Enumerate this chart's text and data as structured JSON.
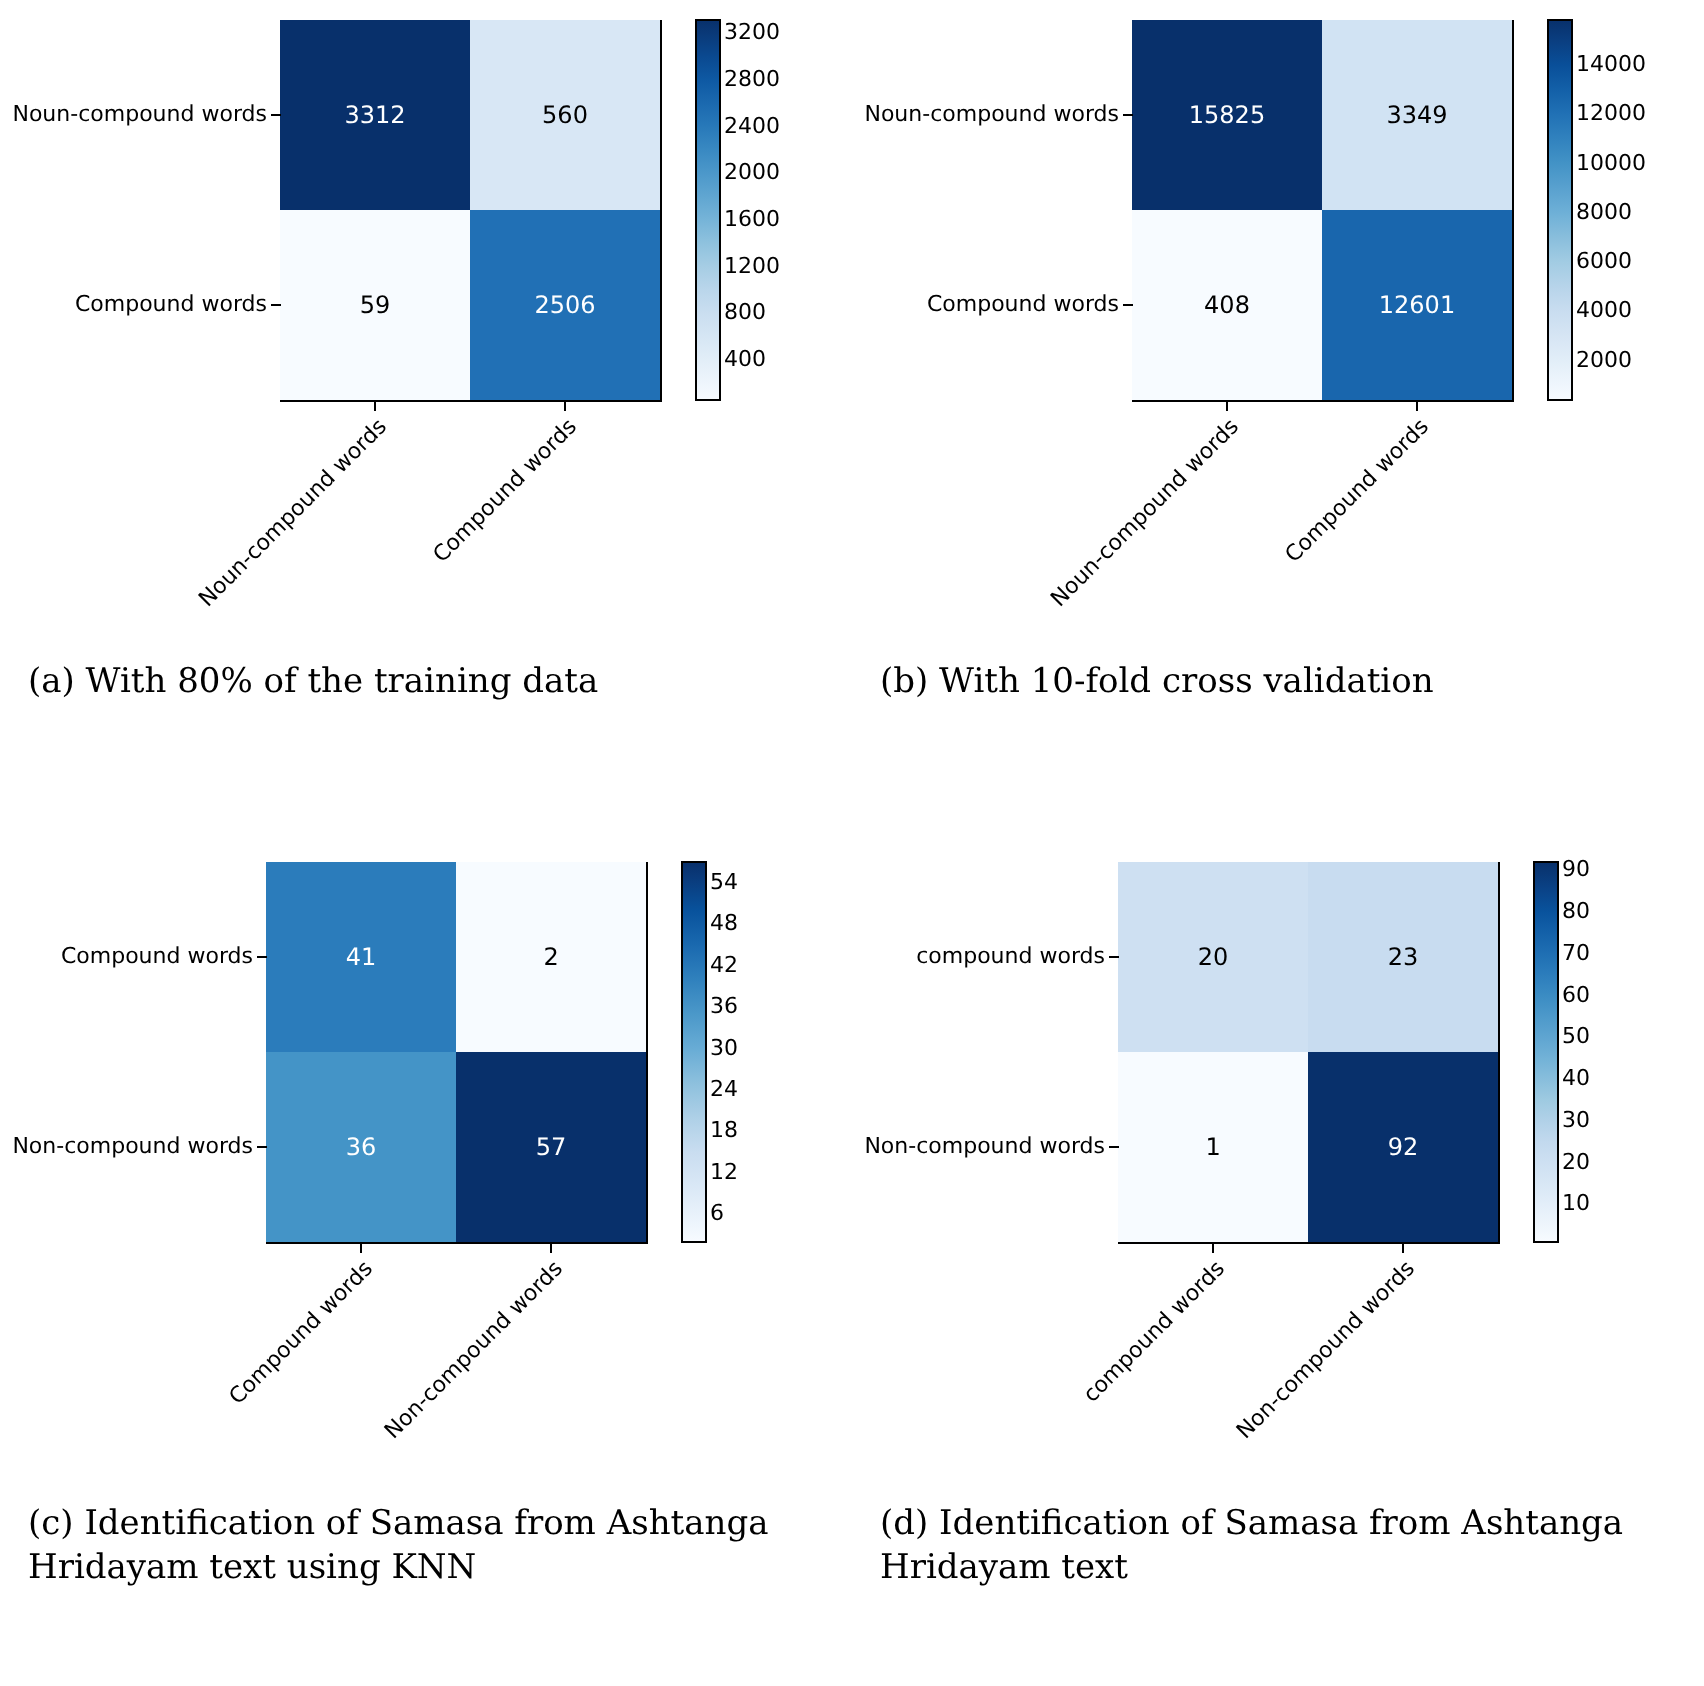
{
  "chart_data": [
    {
      "type": "heatmap",
      "title": "(a) With 80% of the training data",
      "categories": [
        "Noun-compound words",
        "Compound words"
      ],
      "y_categories": [
        "Noun-compound words",
        "Compound words"
      ],
      "cells": [
        [
          3312,
          560
        ],
        [
          59,
          2506
        ]
      ],
      "clim": [
        59,
        3312
      ],
      "cticks": [
        400,
        800,
        1200,
        1600,
        2000,
        2400,
        2800,
        3200
      ],
      "data_labels": true
    },
    {
      "type": "heatmap",
      "title": "(b) With 10-fold cross validation",
      "categories": [
        "Noun-compound words",
        "Compound words"
      ],
      "y_categories": [
        "Noun-compound words",
        "Compound words"
      ],
      "cells": [
        [
          15825,
          3349
        ],
        [
          408,
          12601
        ]
      ],
      "clim": [
        408,
        15825
      ],
      "cticks": [
        2000,
        4000,
        6000,
        8000,
        10000,
        12000,
        14000
      ],
      "data_labels": true
    },
    {
      "type": "heatmap",
      "title": "(c) Identification of Samasa from Ashtanga Hridayam text using KNN",
      "categories": [
        "Compound words",
        "Non-compound words"
      ],
      "y_categories": [
        "Compound words",
        "Non-compound words"
      ],
      "cells": [
        [
          41,
          2
        ],
        [
          36,
          57
        ]
      ],
      "clim": [
        2,
        57
      ],
      "cticks": [
        6,
        12,
        18,
        24,
        30,
        36,
        42,
        48,
        54
      ],
      "data_labels": true
    },
    {
      "type": "heatmap",
      "title": "(d) Identification of Samasa from Ashtanga Hridayam text",
      "categories": [
        "compound words",
        "Non-compound words"
      ],
      "y_categories": [
        "compound words",
        "Non-compound words"
      ],
      "cells": [
        [
          20,
          23
        ],
        [
          1,
          92
        ]
      ],
      "clim": [
        1,
        92
      ],
      "cticks": [
        10,
        20,
        30,
        40,
        50,
        60,
        70,
        80,
        90
      ],
      "data_labels": true
    }
  ]
}
